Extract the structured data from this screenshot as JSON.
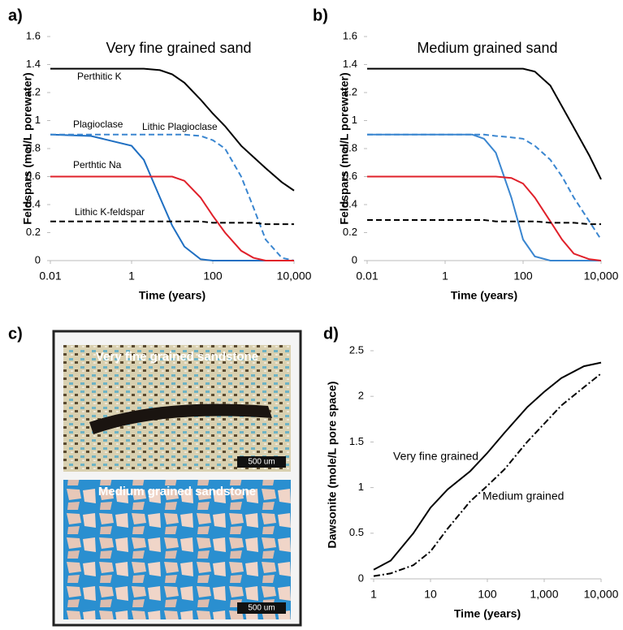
{
  "chart_data": [
    {
      "type": "line",
      "panel_label": "a)",
      "title": "Very fine grained sand",
      "x_label": "Time (years)",
      "y_label": "Feldspars (mol/L porewater)",
      "x_scale": "log",
      "xlim": [
        0.01,
        10000
      ],
      "xticks": [
        0.01,
        1,
        100,
        {
          "value": 10000,
          "label": "10,000"
        }
      ],
      "ylim": [
        0,
        1.6
      ],
      "yticks": [
        0,
        0.2,
        0.4,
        0.6,
        0.8,
        1,
        1.2,
        1.4,
        1.6
      ],
      "grid": false,
      "x": [
        0.01,
        0.1,
        1,
        2,
        5,
        10,
        20,
        50,
        100,
        200,
        500,
        1000,
        2000,
        5000,
        10000
      ],
      "series": [
        {
          "name": "Perthitic K",
          "color": "#000000",
          "dash": "solid",
          "values": [
            1.37,
            1.37,
            1.37,
            1.37,
            1.36,
            1.33,
            1.27,
            1.15,
            1.05,
            0.96,
            0.82,
            0.74,
            0.66,
            0.56,
            0.5
          ]
        },
        {
          "name": "Plagioclase",
          "color": "#1f6fc2",
          "dash": "solid",
          "values": [
            0.9,
            0.89,
            0.82,
            0.72,
            0.45,
            0.25,
            0.1,
            0.01,
            0,
            0,
            0,
            0,
            0,
            0,
            0
          ]
        },
        {
          "name": "Lithic Plagioclase",
          "color": "#3a86d0",
          "dash": "dashed",
          "values": [
            0.9,
            0.9,
            0.9,
            0.9,
            0.9,
            0.9,
            0.9,
            0.89,
            0.86,
            0.8,
            0.6,
            0.38,
            0.15,
            0.02,
            0
          ]
        },
        {
          "name": "Perthtic Na",
          "color": "#e0202a",
          "dash": "solid",
          "values": [
            0.6,
            0.6,
            0.6,
            0.6,
            0.6,
            0.6,
            0.57,
            0.45,
            0.32,
            0.2,
            0.07,
            0.02,
            0,
            0,
            0
          ]
        },
        {
          "name": "Lithic K-feldspar",
          "color": "#000000",
          "dash": "dashed",
          "values": [
            0.28,
            0.28,
            0.28,
            0.28,
            0.28,
            0.28,
            0.28,
            0.28,
            0.27,
            0.27,
            0.27,
            0.27,
            0.26,
            0.26,
            0.26
          ]
        }
      ]
    },
    {
      "type": "line",
      "panel_label": "b)",
      "title": "Medium grained sand",
      "x_label": "Time (years)",
      "y_label": "Feldspars (mol/L porewater)",
      "x_scale": "log",
      "xlim": [
        0.01,
        10000
      ],
      "xticks": [
        0.01,
        1,
        100,
        {
          "value": 10000,
          "label": "10,000"
        }
      ],
      "ylim": [
        0,
        1.6
      ],
      "yticks": [
        0,
        0.2,
        0.4,
        0.6,
        0.8,
        1,
        1.2,
        1.4,
        1.6
      ],
      "grid": false,
      "x": [
        0.01,
        0.1,
        1,
        2,
        5,
        10,
        20,
        50,
        100,
        200,
        500,
        1000,
        2000,
        5000,
        10000
      ],
      "series": [
        {
          "color": "#000000",
          "dash": "solid",
          "values": [
            1.37,
            1.37,
            1.37,
            1.37,
            1.37,
            1.37,
            1.37,
            1.37,
            1.37,
            1.35,
            1.25,
            1.1,
            0.95,
            0.75,
            0.58
          ]
        },
        {
          "color": "#3a86d0",
          "dash": "solid",
          "values": [
            0.9,
            0.9,
            0.9,
            0.9,
            0.9,
            0.87,
            0.77,
            0.45,
            0.15,
            0.03,
            0,
            0,
            0,
            0,
            0
          ]
        },
        {
          "color": "#3a86d0",
          "dash": "dashed",
          "values": [
            0.9,
            0.9,
            0.9,
            0.9,
            0.9,
            0.9,
            0.89,
            0.88,
            0.87,
            0.82,
            0.72,
            0.6,
            0.45,
            0.28,
            0.15
          ]
        },
        {
          "color": "#e0202a",
          "dash": "solid",
          "values": [
            0.6,
            0.6,
            0.6,
            0.6,
            0.6,
            0.6,
            0.6,
            0.59,
            0.55,
            0.45,
            0.28,
            0.15,
            0.05,
            0.01,
            0
          ]
        },
        {
          "color": "#000000",
          "dash": "dashed",
          "values": [
            0.29,
            0.29,
            0.29,
            0.29,
            0.29,
            0.29,
            0.28,
            0.28,
            0.28,
            0.28,
            0.27,
            0.27,
            0.27,
            0.26,
            0.26
          ]
        }
      ]
    },
    {
      "type": "line",
      "panel_label": "d)",
      "x_label": "Time (years)",
      "y_label": "Dawsonite (mole/L pore space)",
      "x_scale": "log",
      "xlim": [
        1,
        10000
      ],
      "xticks": [
        1,
        10,
        100,
        {
          "value": 1000,
          "label": "1,000"
        },
        {
          "value": 10000,
          "label": "10,000"
        }
      ],
      "ylim": [
        0,
        2.5
      ],
      "yticks": [
        0,
        0.5,
        1,
        1.5,
        2,
        2.5
      ],
      "grid": false,
      "annotation_color": "#e0202a",
      "x": [
        1,
        2,
        5,
        10,
        20,
        50,
        100,
        200,
        500,
        1000,
        2000,
        5000,
        10000
      ],
      "series": [
        {
          "name": "Very fine grained",
          "color": "#000000",
          "dash": "solid",
          "values": [
            0.1,
            0.2,
            0.5,
            0.78,
            0.98,
            1.18,
            1.38,
            1.6,
            1.88,
            2.05,
            2.2,
            2.33,
            2.37
          ]
        },
        {
          "name": "Medium grained",
          "color": "#000000",
          "dash": "dashdot",
          "values": [
            0.03,
            0.06,
            0.15,
            0.3,
            0.55,
            0.85,
            1.02,
            1.2,
            1.5,
            1.7,
            1.9,
            2.1,
            2.25
          ]
        }
      ]
    }
  ],
  "photo_panel": {
    "panel_label": "c)",
    "images": [
      {
        "caption": "Very fine grained sandstone",
        "scale_bar": "500 um"
      },
      {
        "caption": "Medium grained sandstone",
        "scale_bar": "500 um"
      }
    ]
  }
}
